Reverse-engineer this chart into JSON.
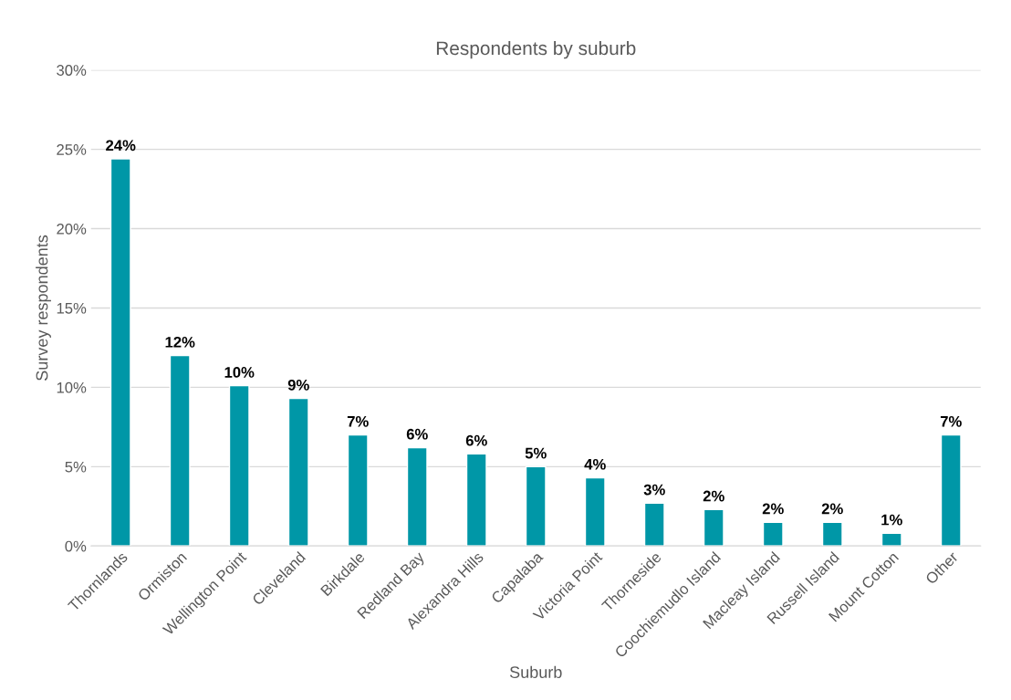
{
  "chart_data": {
    "type": "bar",
    "title": "Respondents by suburb",
    "xlabel": "Suburb",
    "ylabel": "Survey respondents",
    "categories": [
      "Thornlands",
      "Ormiston",
      "Wellington Point",
      "Cleveland",
      "Birkdale",
      "Redland Bay",
      "Alexandra Hills",
      "Capalaba",
      "Victoria Point",
      "Thorneside",
      "Coochiemudlo Island",
      "Macleay Island",
      "Russell Island",
      "Mount Cotton",
      "Other"
    ],
    "values": [
      24.4,
      12.0,
      10.1,
      9.3,
      7.0,
      6.2,
      5.8,
      5.0,
      4.3,
      2.7,
      2.3,
      1.5,
      1.5,
      0.8,
      7.0
    ],
    "value_labels": [
      "24%",
      "12%",
      "10%",
      "9%",
      "7%",
      "6%",
      "6%",
      "5%",
      "4%",
      "3%",
      "2%",
      "2%",
      "2%",
      "1%",
      "7%"
    ],
    "color": "#0097a7",
    "ylim": [
      0,
      30
    ],
    "yticks": [
      {
        "value": 0,
        "label": "0%"
      },
      {
        "value": 5,
        "label": "5%"
      },
      {
        "value": 10,
        "label": "10%"
      },
      {
        "value": 15,
        "label": "15%"
      },
      {
        "value": 20,
        "label": "20%"
      },
      {
        "value": 25,
        "label": "25%"
      },
      {
        "value": 30,
        "label": "30%"
      }
    ],
    "grid": "y"
  }
}
